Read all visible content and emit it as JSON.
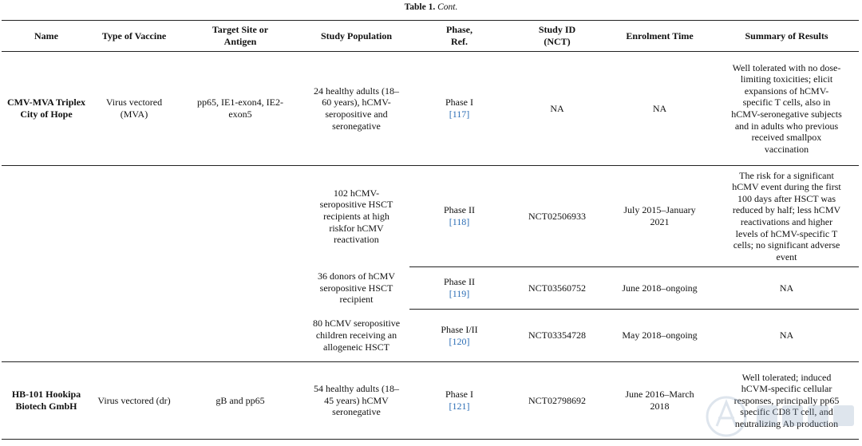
{
  "caption": {
    "label": "Table 1.",
    "cont": "Cont."
  },
  "headers": {
    "name": "Name",
    "type": "Type of Vaccine",
    "target": "Target Site or Antigen",
    "population": "Study Population",
    "phase": "Phase, Ref.",
    "study_id": "Study ID (NCT)",
    "enrolment": "Enrolment Time",
    "summary": "Summary of Results"
  },
  "rows": [
    {
      "name": "CMV-MVA Triplex City of Hope",
      "type": "Virus vectored (MVA)",
      "target": "pp65, IE1-exon4, IE2-exon5",
      "population": "24 healthy adults (18–60 years), hCMV-seropositive and seronegative",
      "phase": "Phase I",
      "ref": "[117]",
      "study_id": "NA",
      "enrolment": "NA",
      "summary": "Well tolerated with no dose-limiting toxicities; elicit expansions of hCMV-specific T cells, also in hCMV-seronegative subjects and in adults who previous received smallpox vaccination"
    },
    {
      "name": "",
      "type": "",
      "target": "",
      "population": "102 hCMV-seropositive HSCT recipients at high riskfor hCMV reactivation",
      "phase": "Phase II",
      "ref": "[118]",
      "study_id": "NCT02506933",
      "enrolment": "July 2015–January 2021",
      "summary": "The risk for a significant hCMV event during the first 100 days after HSCT was reduced by half; less hCMV reactivations and higher levels of hCMV-specific T cells; no significant adverse event"
    },
    {
      "population": "36 donors of hCMV seropositive HSCT recipient",
      "phase": "Phase II",
      "ref": "[119]",
      "study_id": "NCT03560752",
      "enrolment": "June 2018–ongoing",
      "summary": "NA"
    },
    {
      "population": "80 hCMV seropositive children receiving an allogeneic HSCT",
      "phase": "Phase I/II",
      "ref": "[120]",
      "study_id": "NCT03354728",
      "enrolment": "May 2018–ongoing",
      "summary": "NA"
    },
    {
      "name": "HB-101 Hookipa Biotech GmbH",
      "type": "Virus vectored (dr)",
      "target": "gB and pp65",
      "population": "54 healthy adults (18–45 years) hCMV seronegative",
      "phase": "Phase I",
      "ref": "[121]",
      "study_id": "NCT02798692",
      "enrolment": "June 2016–March 2018",
      "summary": "Well tolerated; induced hCVM-specific cellular responses, principally pp65 specific CD8 T cell, and neutralizing Ab production"
    }
  ],
  "watermark": {
    "icon": "watermark-logo-icon",
    "color": "#8aa3c2"
  }
}
